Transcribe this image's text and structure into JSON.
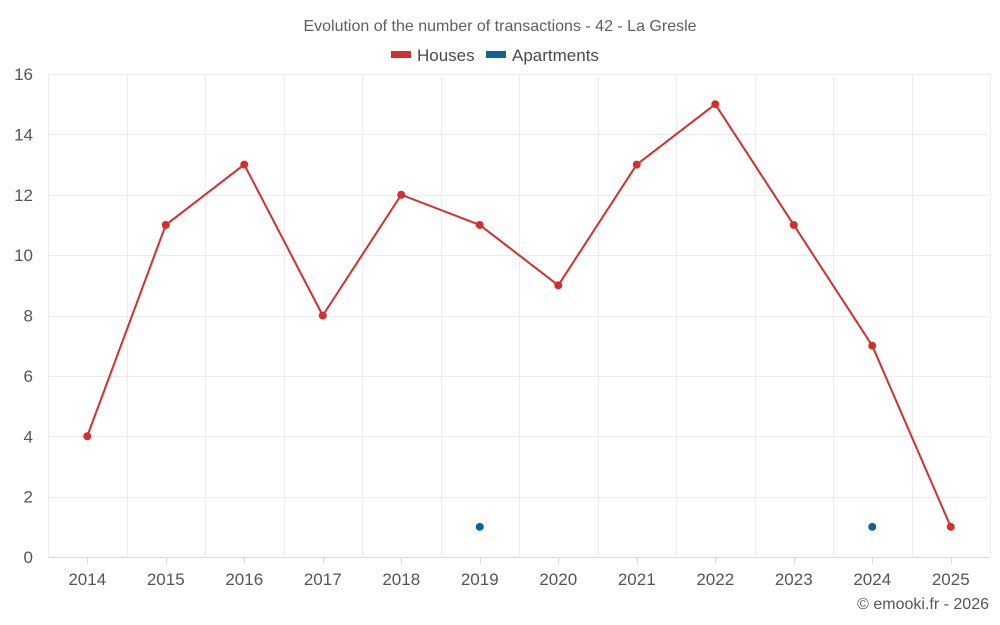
{
  "chart_data": {
    "type": "line",
    "title": "Evolution of the number of transactions - 42 - La Gresle",
    "categories": [
      "2014",
      "2015",
      "2016",
      "2017",
      "2018",
      "2019",
      "2020",
      "2021",
      "2022",
      "2023",
      "2024",
      "2025"
    ],
    "series": [
      {
        "name": "Houses",
        "color": "#d32f2f",
        "values": [
          4,
          11,
          13,
          8,
          12,
          11,
          9,
          13,
          15,
          11,
          7,
          1
        ]
      },
      {
        "name": "Apartments",
        "color": "#0d6591",
        "values": [
          null,
          null,
          null,
          null,
          null,
          1,
          null,
          null,
          null,
          null,
          1,
          null
        ]
      }
    ],
    "ylim": [
      0,
      16
    ],
    "yticks": [
      0,
      2,
      4,
      6,
      8,
      10,
      12,
      14,
      16
    ],
    "grid": true,
    "legend": "top-center"
  },
  "footer": {
    "credit": "© emooki.fr - 2026"
  }
}
